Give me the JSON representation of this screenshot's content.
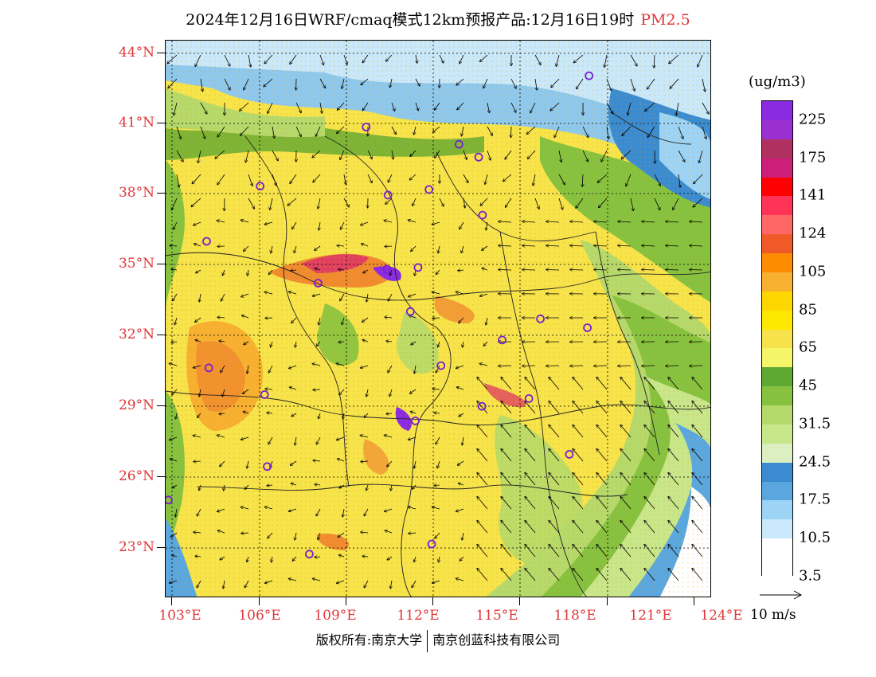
{
  "title": {
    "main": "2024年12月16日WRF/cmaq模式12km预报产品:12月16日19时",
    "pollutant": "PM2.5"
  },
  "axes": {
    "lat_labels": [
      "44°N",
      "41°N",
      "38°N",
      "35°N",
      "32°N",
      "29°N",
      "26°N",
      "23°N"
    ],
    "lon_labels": [
      "103°E",
      "106°E",
      "109°E",
      "112°E",
      "115°E",
      "118°E",
      "121°E",
      "124°E"
    ]
  },
  "colorbar": {
    "units": "(ug/m3)",
    "labels": [
      "225",
      "175",
      "141",
      "124",
      "105",
      "85",
      "65",
      "45",
      "31.5",
      "24.5",
      "17.5",
      "10.5",
      "3.5"
    ],
    "colors": [
      "#8a2be2",
      "#9b30d0",
      "#b03060",
      "#cc1f7a",
      "#ff0000",
      "#ff3355",
      "#ff6666",
      "#f05a28",
      "#ff8c00",
      "#f7b030",
      "#ffd700",
      "#ffe800",
      "#f6e24b",
      "#f5f569",
      "#5fa831",
      "#86c23f",
      "#b5d96a",
      "#c8e68a",
      "#dcefc0",
      "#3b8bd0",
      "#5aa7e0",
      "#9dd4f5",
      "#c9e8fa",
      "#ffffff",
      "#ffffff"
    ]
  },
  "wind_reference": {
    "label": "10 m/s"
  },
  "footer": {
    "left": "版权所有:南京大学",
    "right": "南京创蓝科技有限公司"
  },
  "stations": [
    [
      0.775,
      0.063
    ],
    [
      0.367,
      0.155
    ],
    [
      0.537,
      0.186
    ],
    [
      0.573,
      0.209
    ],
    [
      0.173,
      0.261
    ],
    [
      0.407,
      0.277
    ],
    [
      0.482,
      0.267
    ],
    [
      0.58,
      0.313
    ],
    [
      0.075,
      0.36
    ],
    [
      0.279,
      0.435
    ],
    [
      0.405,
      0.41
    ],
    [
      0.462,
      0.407
    ],
    [
      0.686,
      0.499
    ],
    [
      0.616,
      0.537
    ],
    [
      0.772,
      0.515
    ],
    [
      0.079,
      0.587
    ],
    [
      0.181,
      0.635
    ],
    [
      0.504,
      0.583
    ],
    [
      0.579,
      0.656
    ],
    [
      0.665,
      0.642
    ],
    [
      0.457,
      0.682
    ],
    [
      0.186,
      0.764
    ],
    [
      0.739,
      0.742
    ],
    [
      0.005,
      0.824
    ],
    [
      0.263,
      0.921
    ],
    [
      0.487,
      0.903
    ],
    [
      0.448,
      0.486
    ]
  ]
}
